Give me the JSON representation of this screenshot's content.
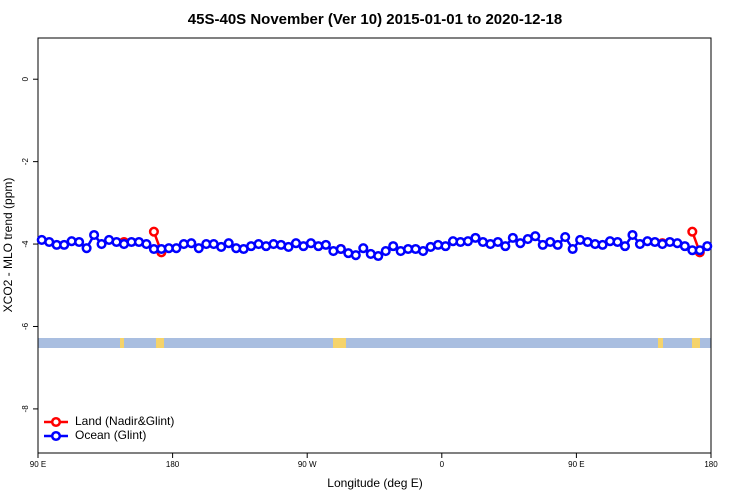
{
  "chart_data": {
    "type": "line",
    "title": "45S-40S November (Ver 10)   2015-01-01 to 2020-12-18",
    "x_label": "Longitude (deg E)",
    "y_label": "XCO2 - MLO trend (ppm)",
    "x": [
      92.5,
      97.5,
      102.5,
      107.5,
      112.5,
      117.5,
      122.5,
      127.5,
      132.5,
      137.5,
      142.5,
      147.5,
      152.5,
      157.5,
      162.5,
      167.5,
      172.5,
      177.5,
      182.5,
      187.5,
      192.5,
      197.5,
      202.5,
      207.5,
      212.5,
      217.5,
      222.5,
      227.5,
      232.5,
      237.5,
      242.5,
      247.5,
      252.5,
      257.5,
      262.5,
      267.5,
      272.5,
      277.5,
      282.5,
      287.5,
      292.5,
      297.5,
      302.5,
      307.5,
      312.5,
      317.5,
      322.5,
      327.5,
      332.5,
      337.5,
      342.5,
      347.5,
      352.5,
      357.5,
      362.5,
      367.5,
      372.5,
      377.5,
      382.5,
      387.5,
      392.5,
      397.5,
      402.5,
      407.5,
      412.5,
      417.5,
      422.5,
      427.5,
      432.5,
      437.5,
      442.5,
      447.5,
      452.5,
      457.5,
      462.5,
      467.5,
      472.5,
      477.5,
      482.5,
      487.5,
      492.5,
      497.5,
      502.5,
      507.5,
      512.5,
      517.5,
      522.5,
      527.5,
      532.5,
      537.5
    ],
    "series": [
      {
        "name": "Land (Nadir&Glint)",
        "color": "#ff0000",
        "values": [
          null,
          null,
          null,
          null,
          null,
          null,
          null,
          null,
          null,
          null,
          null,
          -3.95,
          null,
          null,
          null,
          -3.7,
          -4.2,
          null,
          null,
          null,
          null,
          null,
          null,
          null,
          null,
          null,
          null,
          null,
          null,
          null,
          null,
          null,
          null,
          null,
          null,
          null,
          null,
          null,
          null,
          null,
          -4.12,
          null,
          null,
          null,
          null,
          null,
          null,
          null,
          null,
          null,
          null,
          null,
          null,
          null,
          null,
          null,
          null,
          null,
          null,
          null,
          null,
          null,
          null,
          null,
          null,
          null,
          null,
          null,
          null,
          null,
          null,
          null,
          null,
          null,
          null,
          null,
          null,
          null,
          null,
          null,
          null,
          null,
          null,
          -3.98,
          null,
          null,
          null,
          -3.7,
          -4.2,
          null
        ]
      },
      {
        "name": "Ocean (Glint)",
        "color": "#0000ff",
        "values": [
          -3.9,
          -3.95,
          -4.02,
          -4.02,
          -3.93,
          -3.95,
          -4.1,
          -3.78,
          -4.0,
          -3.9,
          -3.95,
          -4.0,
          -3.95,
          -3.95,
          -4.0,
          -4.12,
          -4.12,
          -4.1,
          -4.1,
          -4.0,
          -3.98,
          -4.1,
          -4.0,
          -4.0,
          -4.07,
          -3.98,
          -4.1,
          -4.12,
          -4.05,
          -4.0,
          -4.05,
          -4.0,
          -4.02,
          -4.07,
          -3.98,
          -4.05,
          -3.98,
          -4.05,
          -4.02,
          -4.17,
          -4.12,
          -4.22,
          -4.27,
          -4.1,
          -4.24,
          -4.29,
          -4.17,
          -4.05,
          -4.17,
          -4.12,
          -4.12,
          -4.17,
          -4.07,
          -4.02,
          -4.05,
          -3.93,
          -3.95,
          -3.93,
          -3.85,
          -3.95,
          -4.0,
          -3.95,
          -4.05,
          -3.85,
          -3.98,
          -3.88,
          -3.81,
          -4.02,
          -3.95,
          -4.02,
          -3.83,
          -4.12,
          -3.9,
          -3.95,
          -4.0,
          -4.02,
          -3.93,
          -3.95,
          -4.05,
          -3.78,
          -4.0,
          -3.93,
          -3.95,
          -4.0,
          -3.95,
          -3.98,
          -4.05,
          -4.15,
          -4.15,
          -4.05
        ]
      }
    ],
    "xlim": [
      90,
      540
    ],
    "xticks": [
      {
        "value": 90,
        "label": "90 E"
      },
      180,
      {
        "value": 270,
        "label": "90 W"
      },
      {
        "value": 360,
        "label": "0"
      },
      {
        "value": 450,
        "label": "90 E"
      },
      {
        "value": 540,
        "label": "180"
      }
    ],
    "ylim": [
      -9.07,
      1.0
    ],
    "yticks": [
      0,
      -2,
      -4,
      -6,
      -8
    ],
    "legend": "bottom-left"
  }
}
